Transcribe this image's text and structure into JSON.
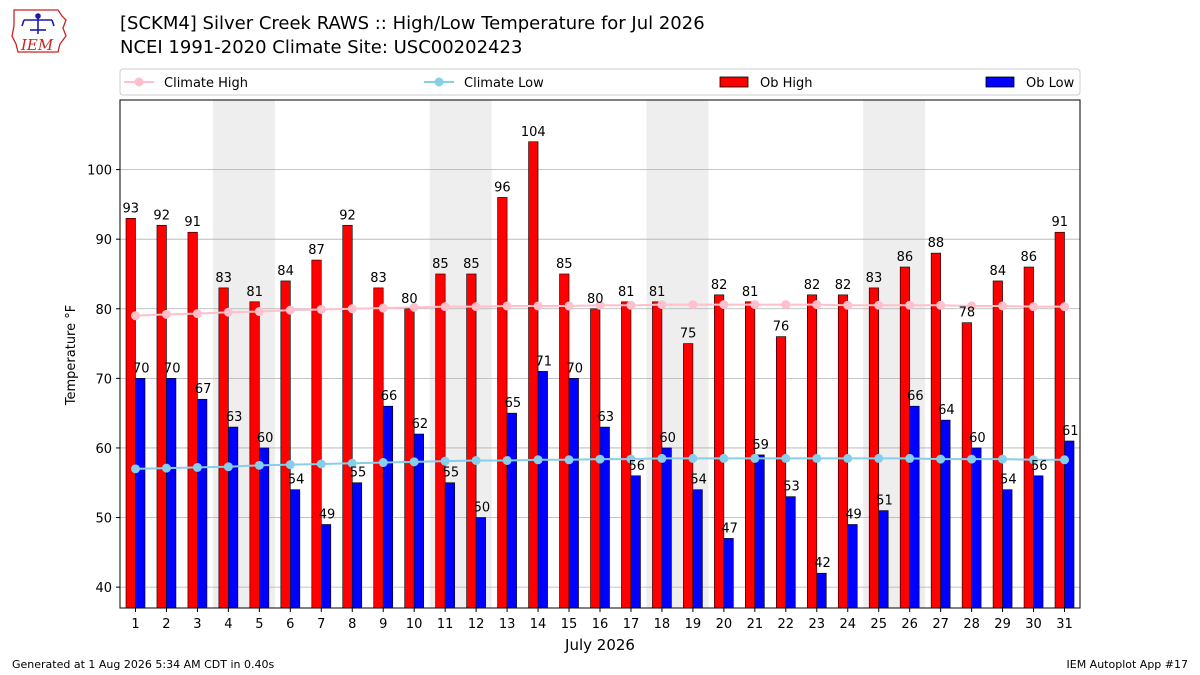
{
  "header": {
    "title_line1": "[SCKM4] Silver Creek RAWS :: High/Low Temperature for Jul 2026",
    "title_line2": "NCEI 1991-2020 Climate Site: USC00202423",
    "logo_text": "IEM"
  },
  "footer": {
    "left": "Generated at 1 Aug 2026 5:34 AM CDT in 0.40s",
    "right": "IEM Autoplot App #17"
  },
  "colors": {
    "ob_high": "#ff0000",
    "ob_low": "#0000ff",
    "climate_high": "#ffc0cb",
    "climate_low": "#87ceeb",
    "weekend_shade": "#eeeeee",
    "grid": "#b0b0b0",
    "logo": "#cc2222"
  },
  "chart_data": {
    "type": "bar",
    "xlabel": "July 2026",
    "ylabel": "Temperature °F",
    "ylim": [
      37,
      110
    ],
    "yticks": [
      40,
      50,
      60,
      70,
      80,
      90,
      100
    ],
    "grid": "horizontal",
    "legend_placement": "top",
    "categories": [
      "1",
      "2",
      "3",
      "4",
      "5",
      "6",
      "7",
      "8",
      "9",
      "10",
      "11",
      "12",
      "13",
      "14",
      "15",
      "16",
      "17",
      "18",
      "19",
      "20",
      "21",
      "22",
      "23",
      "24",
      "25",
      "26",
      "27",
      "28",
      "29",
      "30",
      "31"
    ],
    "shaded_weekend_days": [
      [
        4,
        5
      ],
      [
        11,
        12
      ],
      [
        18,
        19
      ],
      [
        25,
        26
      ]
    ],
    "series": [
      {
        "name": "Climate High",
        "type": "line",
        "values": [
          79.0,
          79.2,
          79.3,
          79.5,
          79.6,
          79.8,
          79.9,
          80.0,
          80.1,
          80.2,
          80.3,
          80.3,
          80.4,
          80.4,
          80.4,
          80.5,
          80.5,
          80.6,
          80.6,
          80.6,
          80.6,
          80.6,
          80.6,
          80.5,
          80.5,
          80.5,
          80.5,
          80.4,
          80.4,
          80.3,
          80.3
        ]
      },
      {
        "name": "Climate Low",
        "type": "line",
        "values": [
          57.0,
          57.1,
          57.2,
          57.3,
          57.5,
          57.6,
          57.7,
          57.8,
          57.9,
          58.0,
          58.1,
          58.2,
          58.2,
          58.3,
          58.3,
          58.4,
          58.4,
          58.5,
          58.5,
          58.5,
          58.5,
          58.5,
          58.5,
          58.5,
          58.5,
          58.5,
          58.4,
          58.4,
          58.4,
          58.3,
          58.3
        ]
      },
      {
        "name": "Ob High",
        "type": "bar",
        "values": [
          93,
          92,
          91,
          83,
          81,
          84,
          87,
          92,
          83,
          80,
          85,
          85,
          96,
          104,
          85,
          80,
          81,
          81,
          75,
          82,
          81,
          76,
          82,
          82,
          83,
          86,
          88,
          78,
          84,
          86,
          91
        ]
      },
      {
        "name": "Ob Low",
        "type": "bar",
        "values": [
          70,
          70,
          67,
          63,
          60,
          54,
          49,
          55,
          66,
          62,
          55,
          50,
          65,
          71,
          70,
          63,
          56,
          60,
          54,
          47,
          59,
          53,
          42,
          49,
          51,
          66,
          64,
          60,
          54,
          56,
          61
        ]
      }
    ]
  }
}
